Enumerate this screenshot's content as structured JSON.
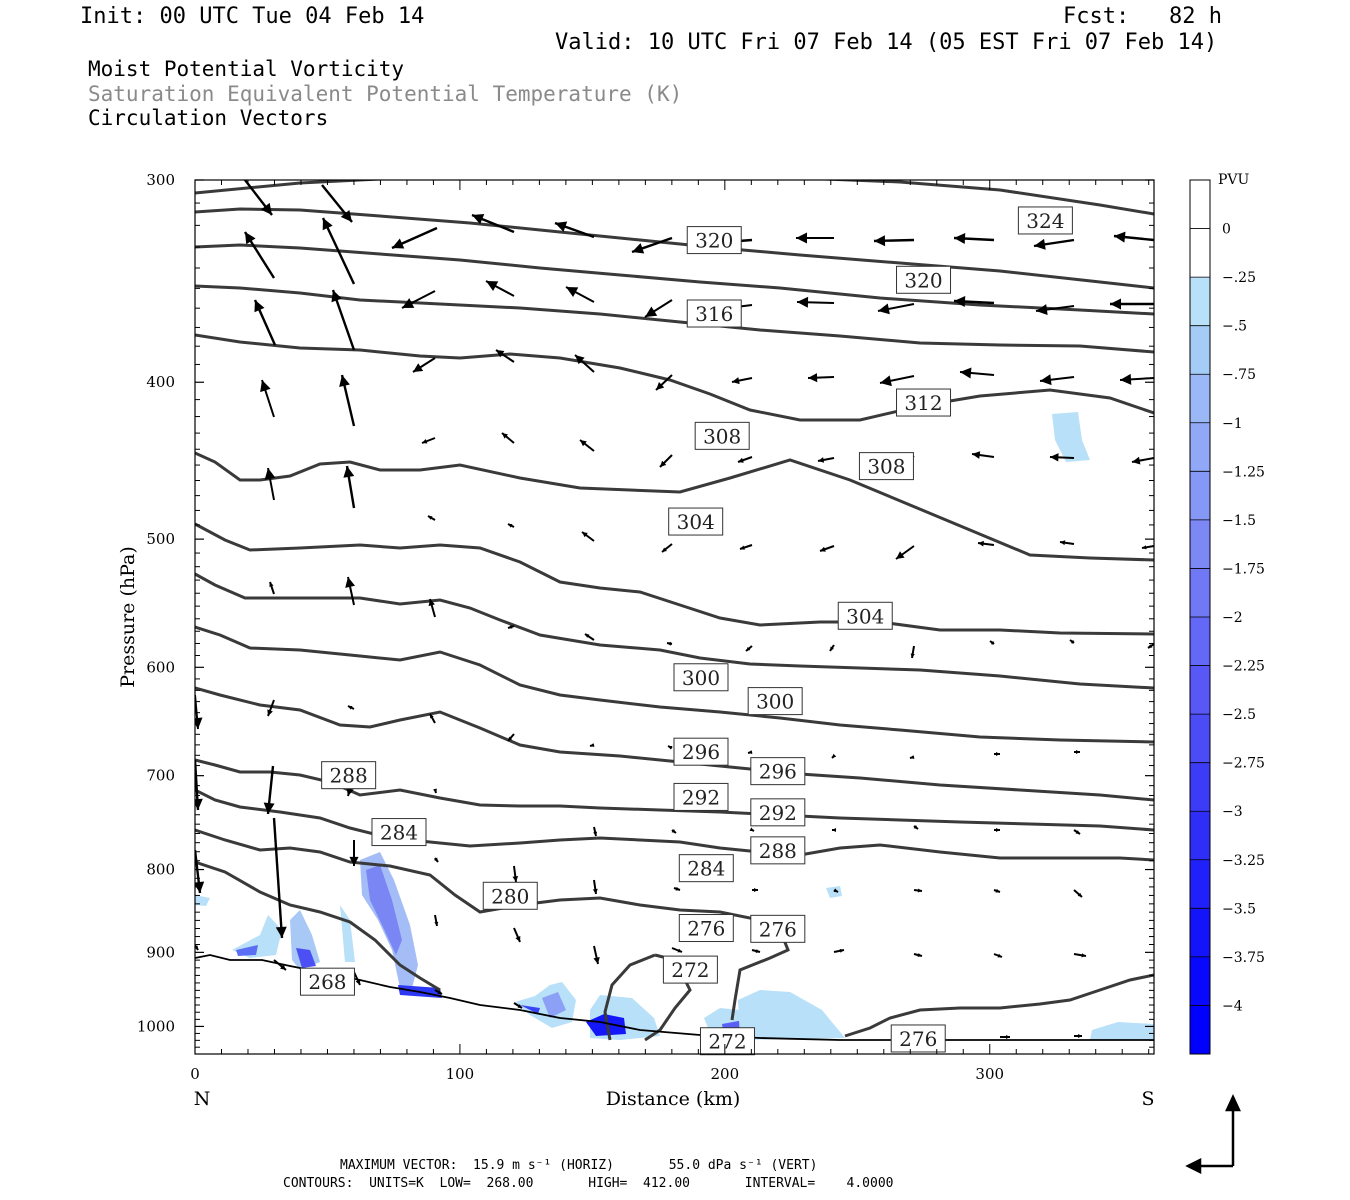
{
  "header": {
    "init": "Init: 00 UTC Tue 04 Feb 14",
    "fcst": "Fcst:   82 h",
    "valid": "Valid: 10 UTC Fri 07 Feb 14 (05 EST Fri 07 Feb 14)",
    "title1": "Moist Potential Vorticity",
    "title2": "Saturation Equivalent Potential Temperature (K)",
    "title3": "Circulation Vectors"
  },
  "footer": {
    "line1": "MAXIMUM VECTOR:  15.9 m s⁻¹ (HORIZ)       55.0 dPa s⁻¹ (VERT)",
    "line2": "CONTOURS:  UNITS=K  LOW=  268.00       HIGH=  412.00       INTERVAL=    4.0000"
  },
  "colors": {
    "contour": "#3a3a3a",
    "axis": "#000000",
    "mpv_light": "#b8e0f8",
    "mpv_dark": "#0000ff"
  },
  "chart_data": {
    "type": "cross-section",
    "xlabel": "Distance (km)",
    "ylabel": "Pressure (hPa)",
    "x_ticks": [
      0,
      100,
      200,
      300
    ],
    "y_ticks": [
      300,
      400,
      500,
      600,
      700,
      800,
      900,
      1000
    ],
    "xlim": [
      0,
      362
    ],
    "ylim": [
      1040,
      300
    ],
    "y_scale": "log",
    "left_end": "N",
    "right_end": "S",
    "grid": false,
    "colorbar": {
      "units": "PVU",
      "labels": [
        "0",
        "-.25",
        "-.5",
        "-.75",
        "-1",
        "-1.25",
        "-1.5",
        "-1.75",
        "-2",
        "-2.25",
        "-2.5",
        "-2.75",
        "-3",
        "-3.25",
        "-3.5",
        "-3.75",
        "-4"
      ],
      "colors": [
        "#ffffff",
        "#ffffff",
        "#b8e0f8",
        "#a4ccf6",
        "#9ab8f6",
        "#90a8f6",
        "#8698f6",
        "#7c88f6",
        "#7078f6",
        "#6468f6",
        "#5858f6",
        "#4c4cf6",
        "#3c3cf6",
        "#2e2ef6",
        "#2020f8",
        "#1414fa",
        "#0808fc",
        "#0000ff"
      ]
    },
    "contour_labels": [
      {
        "text": "324",
        "x": 321,
        "p": 318
      },
      {
        "text": "320",
        "x": 196,
        "p": 327
      },
      {
        "text": "320",
        "x": 275,
        "p": 346
      },
      {
        "text": "316",
        "x": 196,
        "p": 363
      },
      {
        "text": "312",
        "x": 275,
        "p": 412
      },
      {
        "text": "308",
        "x": 199,
        "p": 432
      },
      {
        "text": "308",
        "x": 261,
        "p": 451
      },
      {
        "text": "304",
        "x": 189,
        "p": 488
      },
      {
        "text": "304",
        "x": 253,
        "p": 558
      },
      {
        "text": "300",
        "x": 191,
        "p": 609
      },
      {
        "text": "300",
        "x": 219,
        "p": 630
      },
      {
        "text": "296",
        "x": 191,
        "p": 677
      },
      {
        "text": "296",
        "x": 220,
        "p": 696
      },
      {
        "text": "292",
        "x": 191,
        "p": 722
      },
      {
        "text": "292",
        "x": 220,
        "p": 738
      },
      {
        "text": "288",
        "x": 58,
        "p": 700
      },
      {
        "text": "288",
        "x": 220,
        "p": 779
      },
      {
        "text": "284",
        "x": 77,
        "p": 759
      },
      {
        "text": "284",
        "x": 193,
        "p": 799
      },
      {
        "text": "280",
        "x": 119,
        "p": 831
      },
      {
        "text": "276",
        "x": 193,
        "p": 870
      },
      {
        "text": "276",
        "x": 220,
        "p": 871
      },
      {
        "text": "276",
        "x": 273,
        "p": 1018
      },
      {
        "text": "272",
        "x": 187,
        "p": 923
      },
      {
        "text": "272",
        "x": 201,
        "p": 1022
      },
      {
        "text": "268",
        "x": 50,
        "p": 939
      }
    ]
  }
}
